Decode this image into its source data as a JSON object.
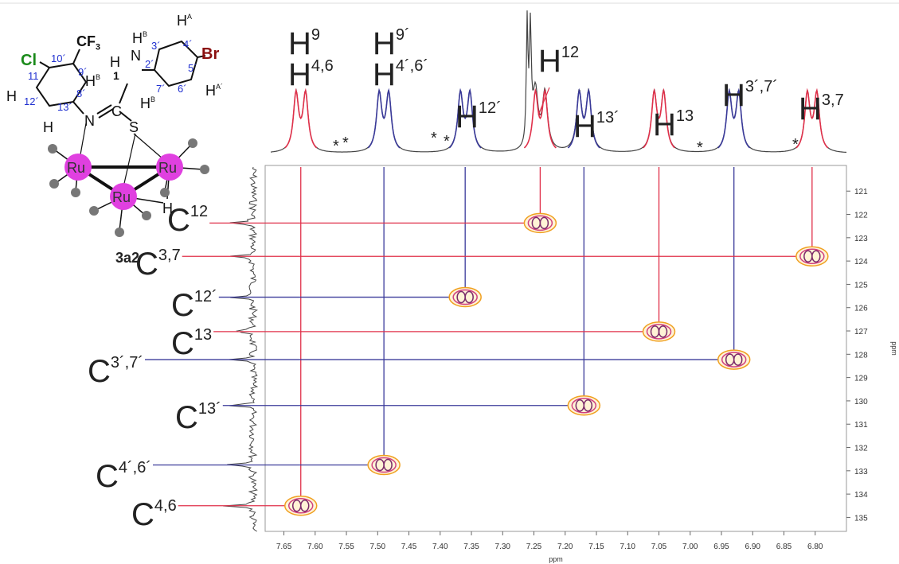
{
  "chart_data": {
    "type": "scatter",
    "x": [
      7.623,
      7.49,
      7.36,
      7.24,
      7.17,
      7.05,
      6.93,
      6.805
    ],
    "values": [
      134.5,
      132.75,
      125.55,
      122.37,
      130.2,
      127.03,
      128.23,
      123.8
    ],
    "colors": [
      "#e0304a",
      "#3a3a9a",
      "#3a3a9a",
      "#e0304a",
      "#3a3a9a",
      "#e0304a",
      "#3a3a9a",
      "#e0304a"
    ],
    "h_labels": [
      {
        "text": "H",
        "sup": "4,6"
      },
      {
        "text": "H",
        "sup": "4´,6´"
      },
      {
        "text": "H",
        "sup": "12´"
      },
      {
        "text": "H",
        "sup": "12"
      },
      {
        "text": "H",
        "sup": "13´"
      },
      {
        "text": "H",
        "sup": "13"
      },
      {
        "text": "H",
        "sup": "3´,7´"
      },
      {
        "text": "H",
        "sup": "3,7"
      }
    ],
    "c_labels": [
      {
        "text": "C",
        "sup": "4,6"
      },
      {
        "text": "C",
        "sup": "4´,6´"
      },
      {
        "text": "C",
        "sup": "12´"
      },
      {
        "text": "C",
        "sup": "12"
      },
      {
        "text": "C",
        "sup": "13´"
      },
      {
        "text": "C",
        "sup": "13"
      },
      {
        "text": "C",
        "sup": "3´,7´"
      },
      {
        "text": "C",
        "sup": "3,7"
      }
    ],
    "extra_labels": [
      {
        "text": "H",
        "sup": "9"
      },
      {
        "text": "H",
        "sup": "9´"
      }
    ],
    "asterisk": "*",
    "xlabel": "ppm",
    "ylabel": "ppm",
    "xlim": [
      7.68,
      6.75
    ],
    "ylim": [
      119.9,
      135.6
    ],
    "xticks": [
      7.65,
      {
        "value": 7.6,
        "label": "7.60"
      },
      7.55,
      {
        "value": 7.5,
        "label": "7.50"
      },
      7.45,
      {
        "value": 7.4,
        "label": "7.40"
      },
      7.35,
      {
        "value": 7.3,
        "label": "7.30"
      },
      7.25,
      {
        "value": 7.2,
        "label": "7.20"
      },
      7.15,
      {
        "value": 7.1,
        "label": "7.10"
      },
      7.05,
      {
        "value": 7.0,
        "label": "7.00"
      },
      6.95,
      {
        "value": 6.9,
        "label": "6.90"
      },
      6.85,
      {
        "value": 6.8,
        "label": "6.80"
      }
    ],
    "yticks": [
      121,
      122,
      123,
      124,
      125,
      126,
      127,
      128,
      129,
      130,
      131,
      132,
      133,
      134,
      135
    ]
  },
  "molecule": {
    "compound": "3a2",
    "labels": [
      {
        "text": "Cl"
      },
      {
        "text": "CF",
        "sub": "3"
      },
      {
        "text": "Br"
      },
      {
        "text": "H",
        "sup": "A"
      },
      {
        "text": "H",
        "sup": "B"
      },
      {
        "text": "H",
        "sup": "A´"
      },
      {
        "text": "H",
        "sup": "B"
      },
      {
        "text": "H",
        "sup": "B"
      },
      {
        "text": "H"
      },
      {
        "text": "H"
      },
      {
        "text": "H"
      },
      {
        "text": "N"
      },
      {
        "text": "N"
      },
      {
        "text": "C"
      },
      {
        "text": "S"
      },
      {
        "text": "Ru"
      },
      {
        "text": "Ru"
      },
      {
        "text": "Ru"
      },
      {
        "text": "H"
      },
      {
        "text": "1"
      }
    ],
    "numbers": [
      "10´",
      "11",
      "9´",
      "12´",
      "13´",
      "8´",
      "3´",
      "4´",
      "5´",
      "6´",
      "7´",
      "2´"
    ]
  }
}
